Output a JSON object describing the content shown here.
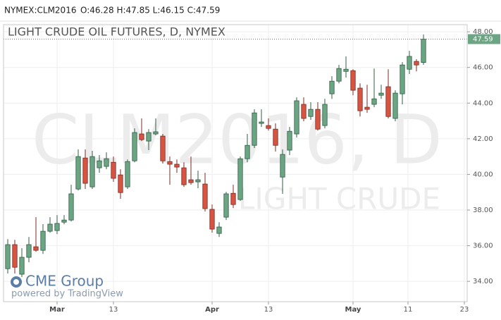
{
  "header": {
    "symbol": "NYMEX:CLM2016",
    "ohlc": "O:46.28 H:47.85 L:46.15 C:47.59"
  },
  "watermark": {
    "symbol": "CLM2016, D",
    "name": "LIGHT CRUDE"
  },
  "logo": {
    "brand": "CME Group",
    "powered": "powered by TradingView"
  },
  "chart_data": {
    "type": "candlestick",
    "title": "LIGHT CRUDE OIL FUTURES, D, NYMEX",
    "up_color": "#6ba583",
    "down_color": "#d75442",
    "grid": true,
    "x": [
      0,
      1,
      2,
      3,
      4,
      5,
      6,
      7,
      8,
      9,
      10,
      11,
      12,
      13,
      14,
      15,
      16,
      17,
      18,
      19,
      20,
      21,
      22,
      23,
      24,
      25,
      26,
      27,
      28,
      29,
      30,
      31,
      32,
      33,
      34,
      35,
      36,
      37,
      38,
      39,
      40,
      41,
      42,
      43,
      44,
      45,
      46,
      47,
      48,
      49,
      50,
      51,
      52,
      53,
      54,
      55,
      56,
      57,
      58,
      59
    ],
    "open": [
      34.71,
      36.06,
      34.4,
      35.35,
      35.94,
      35.74,
      36.81,
      36.85,
      37.32,
      37.44,
      39.18,
      40.92,
      39.3,
      40.37,
      40.45,
      40.68,
      39.97,
      39.3,
      40.76,
      42.27,
      41.87,
      42.27,
      42.15,
      40.72,
      40.57,
      40.37,
      39.7,
      39.58,
      39.46,
      38.04,
      36.69,
      37.6,
      38.94,
      38.59,
      40.88,
      41.63,
      42.86,
      42.74,
      42.54,
      39.85,
      41.36,
      42.27,
      43.93,
      43.25,
      43.65,
      42.74,
      44.52,
      45.23,
      45.78,
      45.82,
      44.84,
      43.77,
      43.93,
      44.44,
      44.92,
      43.14,
      44.52,
      45.9,
      46.34,
      46.28
    ],
    "high": [
      36.37,
      36.33,
      35.86,
      36.49,
      37.6,
      37.21,
      37.6,
      37.72,
      37.72,
      39.42,
      41.4,
      41.4,
      41.32,
      41.08,
      41.24,
      41.0,
      40.29,
      40.84,
      42.58,
      43.14,
      42.54,
      43.14,
      42.27,
      41.0,
      40.84,
      40.68,
      41.0,
      40.21,
      40.09,
      38.31,
      37.32,
      39.02,
      39.42,
      41.0,
      42.27,
      43.65,
      43.65,
      43.14,
      42.86,
      41.4,
      42.66,
      44.32,
      44.32,
      44.05,
      44.05,
      44.24,
      45.51,
      46.14,
      46.62,
      45.9,
      45.11,
      45.03,
      45.94,
      45.03,
      45.9,
      44.72,
      46.3,
      46.93,
      46.46,
      47.85
    ],
    "low": [
      34.44,
      34.44,
      34.24,
      35.07,
      35.66,
      35.54,
      36.73,
      36.65,
      37.2,
      37.36,
      39.1,
      39.18,
      39.18,
      40.09,
      40.29,
      39.58,
      38.63,
      39.18,
      40.68,
      41.87,
      41.36,
      42.19,
      40.61,
      39.42,
      40.09,
      39.3,
      39.42,
      39.22,
      37.92,
      36.73,
      36.49,
      37.44,
      38.11,
      38.51,
      40.68,
      41.48,
      42.66,
      42.46,
      41.28,
      38.91,
      41.08,
      42.07,
      42.98,
      43.06,
      42.46,
      42.58,
      44.24,
      45.11,
      45.43,
      44.44,
      43.25,
      43.45,
      43.77,
      44.24,
      43.14,
      42.98,
      43.93,
      45.63,
      45.78,
      46.15
    ],
    "close": [
      36.06,
      34.79,
      35.35,
      36.06,
      35.74,
      36.81,
      37.21,
      37.25,
      37.44,
      38.91,
      41.0,
      39.5,
      41.0,
      40.76,
      40.88,
      39.78,
      38.98,
      40.72,
      42.35,
      41.95,
      42.35,
      42.39,
      40.76,
      40.57,
      40.41,
      39.42,
      39.54,
      39.7,
      38.08,
      36.93,
      37.05,
      38.91,
      38.31,
      40.88,
      41.63,
      43.45,
      42.94,
      42.58,
      41.63,
      41.12,
      42.42,
      44.13,
      43.14,
      43.65,
      42.54,
      43.93,
      45.23,
      45.94,
      45.9,
      44.72,
      43.57,
      43.65,
      44.24,
      44.56,
      43.25,
      44.56,
      46.14,
      46.62,
      46.14,
      47.59
    ],
    "last_price": 47.59,
    "xlim": [
      -0.6,
      65.2
    ],
    "xticks": [
      {
        "value": 7,
        "label": "Mar"
      },
      {
        "value": 15,
        "label": "13"
      },
      {
        "value": 29,
        "label": "Apr"
      },
      {
        "value": 37,
        "label": "13"
      },
      {
        "value": 49,
        "label": "May"
      },
      {
        "value": 56.8,
        "label": "11"
      },
      {
        "value": 64.8,
        "label": "23"
      }
    ],
    "ylim": [
      32.86,
      48.4
    ],
    "yticks": [
      {
        "value": 34,
        "label": "34.00"
      },
      {
        "value": 36,
        "label": "36.00"
      },
      {
        "value": 38,
        "label": "38.00"
      },
      {
        "value": 40,
        "label": "40.00"
      },
      {
        "value": 42,
        "label": "42.00"
      },
      {
        "value": 44,
        "label": "44.00"
      },
      {
        "value": 46,
        "label": "46.00"
      },
      {
        "value": 48,
        "label": "48.00"
      }
    ]
  }
}
